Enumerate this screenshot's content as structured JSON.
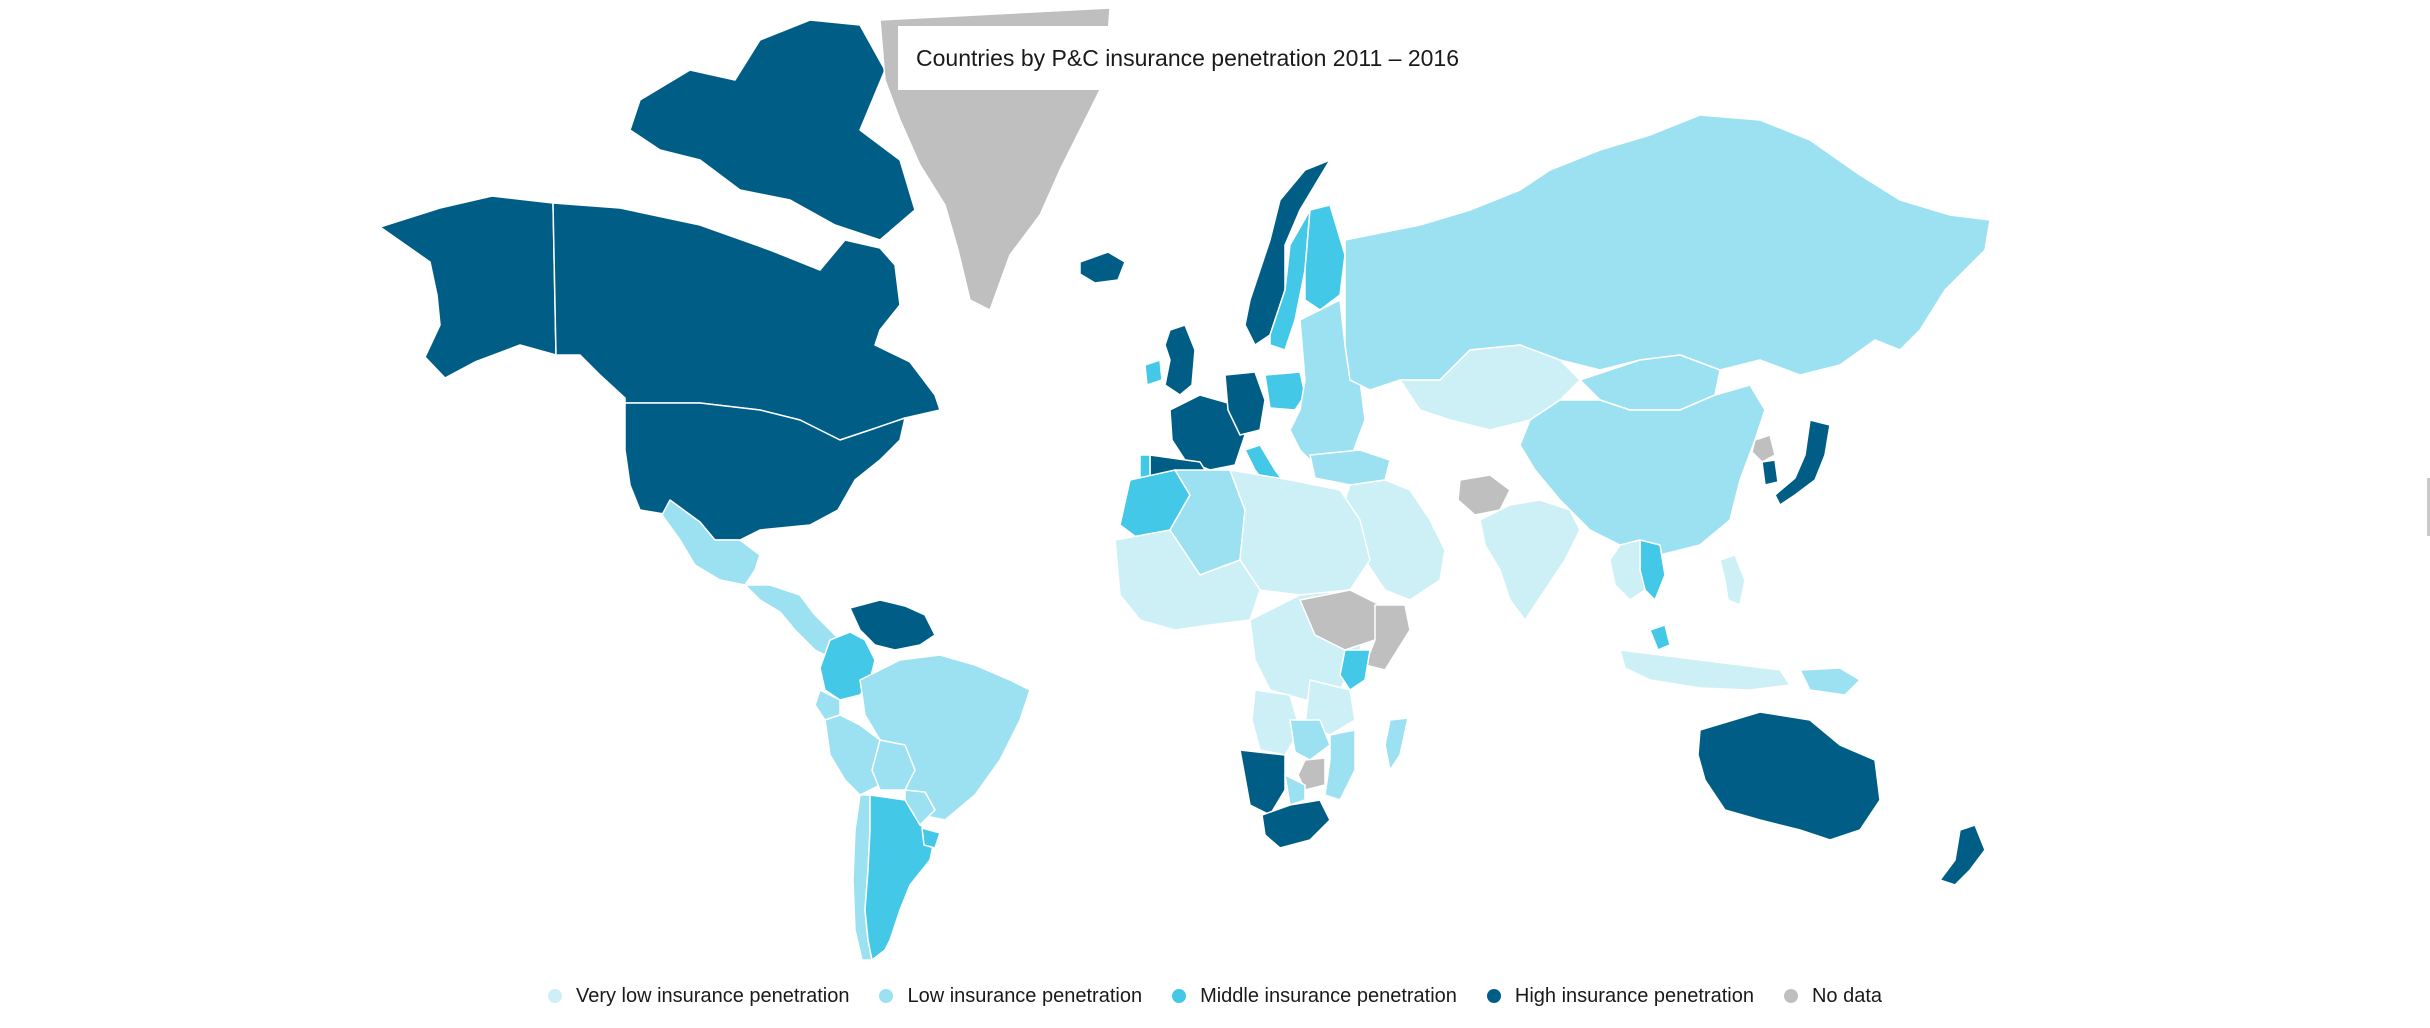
{
  "map": {
    "title": "Countries by P&C insurance penetration 2011 – 2016",
    "colors": {
      "very_low": "#cdeff6",
      "low": "#9ce1f1",
      "middle": "#43c8e8",
      "high": "#005e86",
      "no_data": "#bfbfbf",
      "border": "#ffffff"
    },
    "regions": [
      {
        "name": "Alaska",
        "category": "high"
      },
      {
        "name": "Canada",
        "category": "high"
      },
      {
        "name": "Canadian Arctic Islands",
        "category": "high"
      },
      {
        "name": "Greenland",
        "category": "no_data"
      },
      {
        "name": "Iceland",
        "category": "high"
      },
      {
        "name": "United States",
        "category": "high"
      },
      {
        "name": "Mexico",
        "category": "low"
      },
      {
        "name": "Central America",
        "category": "low"
      },
      {
        "name": "Colombia",
        "category": "middle"
      },
      {
        "name": "Venezuela",
        "category": "high"
      },
      {
        "name": "Ecuador",
        "category": "low"
      },
      {
        "name": "Peru",
        "category": "low"
      },
      {
        "name": "Brazil",
        "category": "low"
      },
      {
        "name": "Bolivia",
        "category": "low"
      },
      {
        "name": "Paraguay",
        "category": "low"
      },
      {
        "name": "Chile",
        "category": "low"
      },
      {
        "name": "Argentina",
        "category": "middle"
      },
      {
        "name": "Uruguay",
        "category": "middle"
      },
      {
        "name": "Norway",
        "category": "high"
      },
      {
        "name": "Sweden",
        "category": "middle"
      },
      {
        "name": "Finland",
        "category": "middle"
      },
      {
        "name": "United Kingdom",
        "category": "high"
      },
      {
        "name": "Ireland",
        "category": "middle"
      },
      {
        "name": "France",
        "category": "high"
      },
      {
        "name": "Spain",
        "category": "high"
      },
      {
        "name": "Portugal",
        "category": "middle"
      },
      {
        "name": "Germany",
        "category": "high"
      },
      {
        "name": "Poland",
        "category": "middle"
      },
      {
        "name": "Italy",
        "category": "middle"
      },
      {
        "name": "Eastern Europe",
        "category": "low"
      },
      {
        "name": "Turkey",
        "category": "low"
      },
      {
        "name": "Russia",
        "category": "low"
      },
      {
        "name": "Kazakhstan",
        "category": "very_low"
      },
      {
        "name": "Mongolia",
        "category": "low"
      },
      {
        "name": "China",
        "category": "low"
      },
      {
        "name": "North Korea",
        "category": "no_data"
      },
      {
        "name": "South Korea",
        "category": "high"
      },
      {
        "name": "Japan",
        "category": "high"
      },
      {
        "name": "Middle East",
        "category": "very_low"
      },
      {
        "name": "Afghanistan",
        "category": "no_data"
      },
      {
        "name": "India",
        "category": "very_low"
      },
      {
        "name": "Thailand",
        "category": "middle"
      },
      {
        "name": "Southeast Asia",
        "category": "very_low"
      },
      {
        "name": "Malaysia",
        "category": "middle"
      },
      {
        "name": "Indonesia",
        "category": "very_low"
      },
      {
        "name": "Papua New Guinea",
        "category": "low"
      },
      {
        "name": "Philippines",
        "category": "very_low"
      },
      {
        "name": "Morocco",
        "category": "middle"
      },
      {
        "name": "Algeria",
        "category": "low"
      },
      {
        "name": "North Africa",
        "category": "very_low"
      },
      {
        "name": "West Africa",
        "category": "very_low"
      },
      {
        "name": "Central Africa",
        "category": "very_low"
      },
      {
        "name": "Ethiopia",
        "category": "no_data"
      },
      {
        "name": "Somalia",
        "category": "no_data"
      },
      {
        "name": "Kenya",
        "category": "middle"
      },
      {
        "name": "Tanzania",
        "category": "very_low"
      },
      {
        "name": "Angola",
        "category": "very_low"
      },
      {
        "name": "Zambia",
        "category": "low"
      },
      {
        "name": "Mozambique",
        "category": "low"
      },
      {
        "name": "Zimbabwe",
        "category": "no_data"
      },
      {
        "name": "Namibia",
        "category": "high"
      },
      {
        "name": "Botswana",
        "category": "low"
      },
      {
        "name": "South Africa",
        "category": "high"
      },
      {
        "name": "Madagascar",
        "category": "low"
      },
      {
        "name": "Australia",
        "category": "high"
      },
      {
        "name": "New Zealand",
        "category": "high"
      }
    ]
  },
  "legend": [
    {
      "key": "very_low",
      "label": "Very low insurance penetration",
      "color": "#cdeff6"
    },
    {
      "key": "low",
      "label": "Low insurance penetration",
      "color": "#9ce1f1"
    },
    {
      "key": "middle",
      "label": "Middle insurance penetration",
      "color": "#43c8e8"
    },
    {
      "key": "high",
      "label": "High insurance penetration",
      "color": "#005e86"
    },
    {
      "key": "no_data",
      "label": "No data",
      "color": "#bfbfbf"
    }
  ]
}
